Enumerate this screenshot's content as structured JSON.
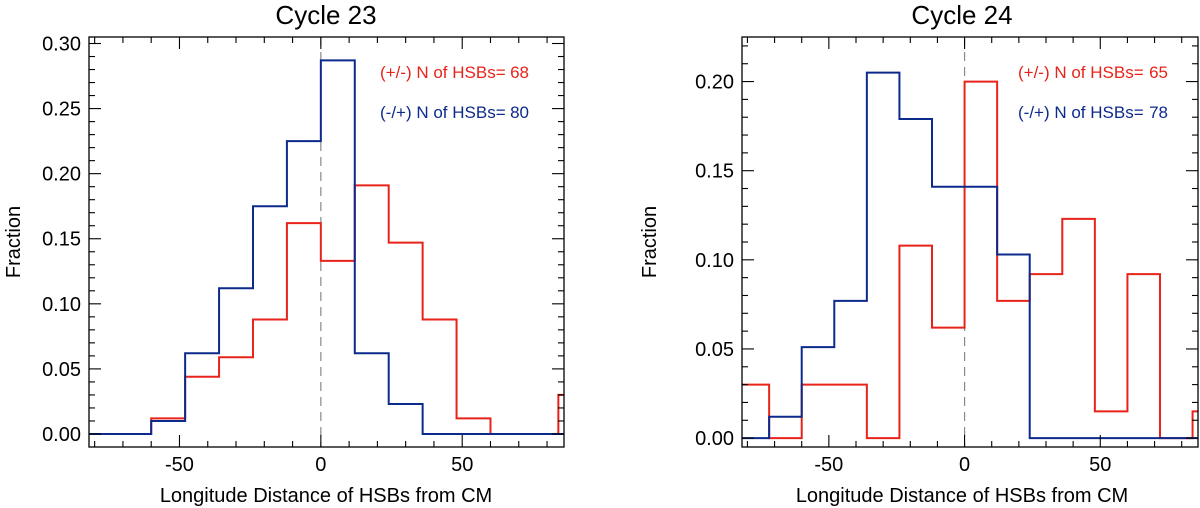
{
  "chart_data": [
    {
      "type": "histogram",
      "title": "Cycle 23",
      "xlabel": "Longitude Distance of HSBs from CM",
      "ylabel": "Fraction",
      "xlim": [
        -82,
        86
      ],
      "ylim": [
        -0.01,
        0.305
      ],
      "xticks": [
        -50,
        0,
        50
      ],
      "yticks": [
        0.0,
        0.05,
        0.1,
        0.15,
        0.2,
        0.25,
        0.3
      ],
      "ytick_labels": [
        "0.00",
        "0.05",
        "0.10",
        "0.15",
        "0.20",
        "0.25",
        "0.30"
      ],
      "reference_line_x": 0,
      "series": [
        {
          "name": "(+/-) N of HSBs=",
          "count": "68",
          "color": "#e8231a",
          "x": [
            -84,
            -72,
            -60,
            -48,
            -36,
            -24,
            -12,
            0,
            12,
            24,
            36,
            48,
            60,
            72,
            84,
            96
          ],
          "values": [
            0.0,
            0.0,
            0.012,
            0.044,
            0.059,
            0.088,
            0.162,
            0.133,
            0.191,
            0.147,
            0.088,
            0.012,
            0.0,
            0.0,
            0.03
          ]
        },
        {
          "name": "(-/+) N of HSBs=",
          "count": "80",
          "color": "#0c2a8c",
          "x": [
            -84,
            -72,
            -60,
            -48,
            -36,
            -24,
            -12,
            0,
            12,
            24,
            36,
            48,
            60,
            72,
            84,
            96
          ],
          "values": [
            0.0,
            0.0,
            0.01,
            0.062,
            0.112,
            0.175,
            0.225,
            0.287,
            0.062,
            0.023,
            0.0,
            0.0,
            0.0,
            0.0,
            0.0
          ]
        }
      ]
    },
    {
      "type": "histogram",
      "title": "Cycle 24",
      "xlabel": "Longitude Distance of HSBs from CM",
      "ylabel": "Fraction",
      "xlim": [
        -82,
        86
      ],
      "ylim": [
        -0.005,
        0.225
      ],
      "xticks": [
        -50,
        0,
        50
      ],
      "yticks": [
        0.0,
        0.05,
        0.1,
        0.15,
        0.2
      ],
      "ytick_labels": [
        "0.00",
        "0.05",
        "0.10",
        "0.15",
        "0.20"
      ],
      "reference_line_x": 0,
      "series": [
        {
          "name": "(+/-) N of HSBs=",
          "count": "65",
          "color": "#e8231a",
          "x": [
            -84,
            -72,
            -60,
            -48,
            -36,
            -24,
            -12,
            0,
            12,
            24,
            36,
            48,
            60,
            72,
            84,
            96
          ],
          "values": [
            0.03,
            0.0,
            0.03,
            0.03,
            0.0,
            0.108,
            0.062,
            0.2,
            0.077,
            0.092,
            0.123,
            0.015,
            0.092,
            0.0,
            0.015
          ]
        },
        {
          "name": "(-/+) N of HSBs=",
          "count": "78",
          "color": "#0c2a8c",
          "x": [
            -84,
            -72,
            -60,
            -48,
            -36,
            -24,
            -12,
            0,
            12,
            24,
            36,
            48,
            60,
            72,
            84,
            96
          ],
          "values": [
            0.0,
            0.012,
            0.051,
            0.077,
            0.205,
            0.179,
            0.141,
            0.141,
            0.103,
            0.0,
            0.0,
            0.0,
            0.0,
            0.0,
            0.0
          ]
        }
      ]
    }
  ]
}
